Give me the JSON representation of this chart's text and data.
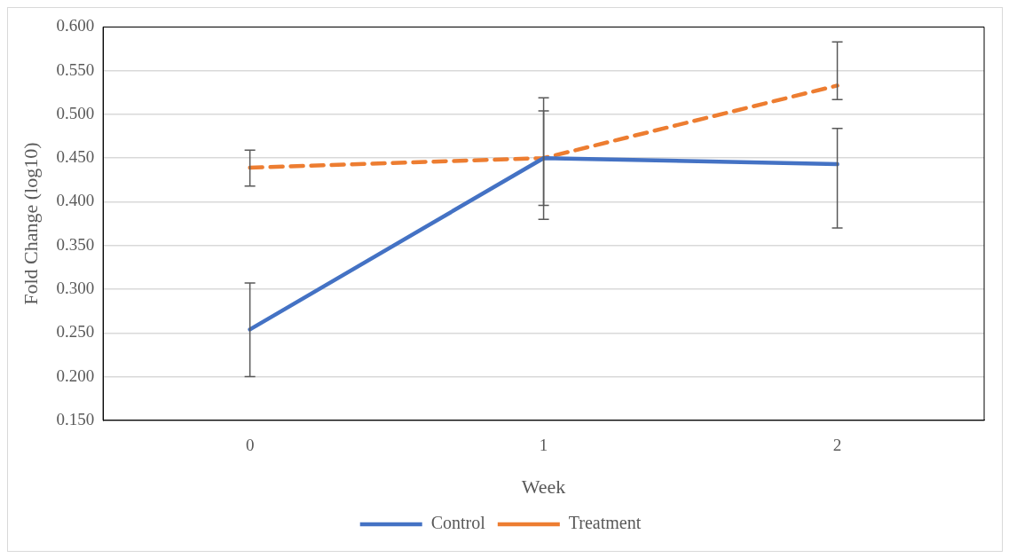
{
  "chart_data": {
    "type": "line",
    "xlabel": "Week",
    "ylabel": "Fold Change (log10)",
    "categories": [
      "0",
      "1",
      "2"
    ],
    "series": [
      {
        "name": "Control",
        "color": "#4472c4",
        "values": [
          0.254,
          0.45,
          0.443
        ],
        "errors": [
          [
            0.2,
            0.307
          ],
          [
            0.38,
            0.519
          ],
          [
            0.37,
            0.484
          ]
        ],
        "line_style": "solid"
      },
      {
        "name": "Treatment",
        "color": "#ed7d31",
        "values": [
          0.439,
          0.45,
          0.533
        ],
        "errors": [
          [
            0.418,
            0.459
          ],
          [
            0.396,
            0.504
          ],
          [
            0.517,
            0.583
          ]
        ],
        "line_style": "dashed"
      }
    ],
    "ylim": [
      0.15,
      0.6
    ],
    "yticks": [
      {
        "value": 0.15,
        "label": "0.150"
      },
      {
        "value": 0.2,
        "label": "0.200"
      },
      {
        "value": 0.25,
        "label": "0.250"
      },
      {
        "value": 0.3,
        "label": "0.300"
      },
      {
        "value": 0.35,
        "label": "0.350"
      },
      {
        "value": 0.4,
        "label": "0.400"
      },
      {
        "value": 0.45,
        "label": "0.450"
      },
      {
        "value": 0.5,
        "label": "0.500"
      },
      {
        "value": 0.55,
        "label": "0.550"
      },
      {
        "value": 0.6,
        "label": "0.600"
      }
    ],
    "grid": "y",
    "legend": "bottom",
    "marker": "none"
  }
}
